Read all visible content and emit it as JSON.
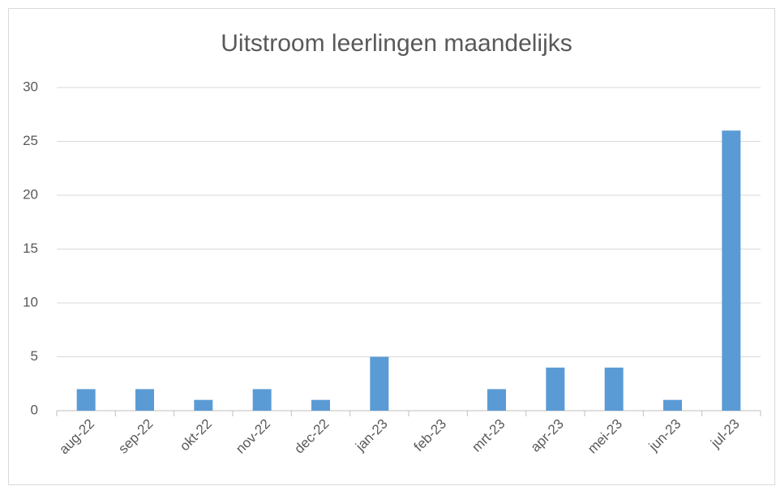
{
  "chart_data": {
    "type": "bar",
    "title": "Uitstroom leerlingen maandelijks",
    "categories": [
      "aug-22",
      "sep-22",
      "okt-22",
      "nov-22",
      "dec-22",
      "jan-23",
      "feb-23",
      "mrt-23",
      "apr-23",
      "mei-23",
      "jun-23",
      "jul-23"
    ],
    "values": [
      2,
      2,
      1,
      2,
      1,
      5,
      0,
      2,
      4,
      4,
      1,
      26
    ],
    "color": "#5b9bd5",
    "ylim": [
      0,
      30
    ],
    "yticks": [
      0,
      5,
      10,
      15,
      20,
      25,
      30
    ],
    "grid": true
  }
}
